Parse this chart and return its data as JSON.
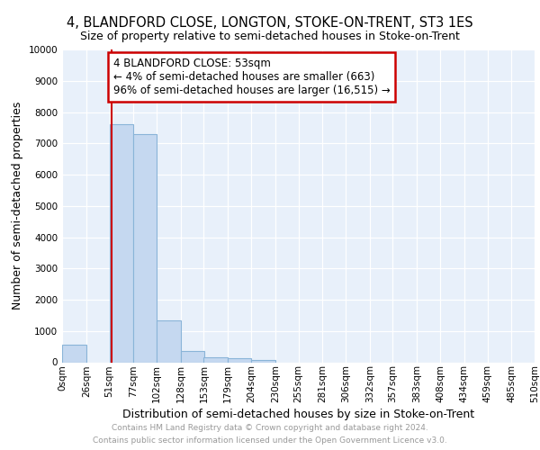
{
  "title": "4, BLANDFORD CLOSE, LONGTON, STOKE-ON-TRENT, ST3 1ES",
  "subtitle": "Size of property relative to semi-detached houses in Stoke-on-Trent",
  "xlabel": "Distribution of semi-detached houses by size in Stoke-on-Trent",
  "ylabel": "Number of semi-detached properties",
  "footer_line1": "Contains HM Land Registry data © Crown copyright and database right 2024.",
  "footer_line2": "Contains public sector information licensed under the Open Government Licence v3.0.",
  "bin_edges": [
    0,
    26,
    51,
    77,
    102,
    128,
    153,
    179,
    204,
    230,
    255,
    281,
    306,
    332,
    357,
    383,
    408,
    434,
    459,
    485,
    510
  ],
  "bar_heights": [
    575,
    0,
    7600,
    7300,
    1350,
    350,
    170,
    130,
    80,
    0,
    0,
    0,
    0,
    0,
    0,
    0,
    0,
    0,
    0,
    0
  ],
  "bar_color": "#c5d8f0",
  "bar_edge_color": "#8ab4d8",
  "property_size": 53,
  "property_label": "4 BLANDFORD CLOSE: 53sqm",
  "pct_smaller": 4,
  "pct_smaller_count": 663,
  "pct_larger": 96,
  "pct_larger_count": 16515,
  "vline_color": "#cc0000",
  "annotation_box_color": "#cc0000",
  "ylim": [
    0,
    10000
  ],
  "yticks": [
    0,
    1000,
    2000,
    3000,
    4000,
    5000,
    6000,
    7000,
    8000,
    9000,
    10000
  ],
  "xtick_labels": [
    "0sqm",
    "26sqm",
    "51sqm",
    "77sqm",
    "102sqm",
    "128sqm",
    "153sqm",
    "179sqm",
    "204sqm",
    "230sqm",
    "255sqm",
    "281sqm",
    "306sqm",
    "332sqm",
    "357sqm",
    "383sqm",
    "408sqm",
    "434sqm",
    "459sqm",
    "485sqm",
    "510sqm"
  ],
  "bg_color": "#e8f0fa",
  "title_fontsize": 10.5,
  "subtitle_fontsize": 9,
  "axis_label_fontsize": 9,
  "tick_fontsize": 7.5,
  "footer_fontsize": 6.5
}
